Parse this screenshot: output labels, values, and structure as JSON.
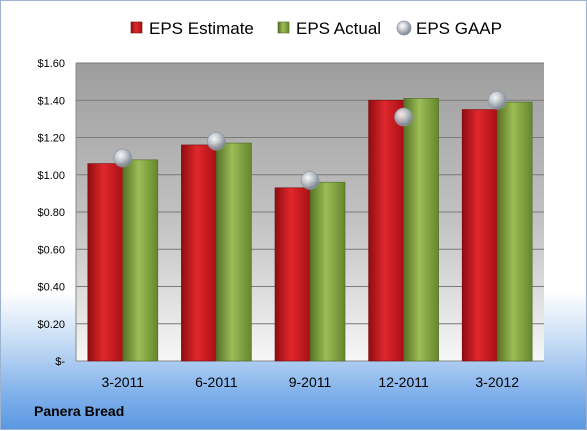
{
  "company": "Panera Bread",
  "chart_data": {
    "type": "bar",
    "categories": [
      "3-2011",
      "6-2011",
      "9-2011",
      "12-2011",
      "3-2012"
    ],
    "series": [
      {
        "name": "EPS Estimate",
        "kind": "bar",
        "color": "#c8141a",
        "values": [
          1.06,
          1.16,
          0.93,
          1.4,
          1.35
        ]
      },
      {
        "name": "EPS Actual",
        "kind": "bar",
        "color": "#7a9c3a",
        "values": [
          1.08,
          1.17,
          0.96,
          1.41,
          1.39
        ]
      },
      {
        "name": "EPS GAAP",
        "kind": "marker",
        "color": "#a9b3c2",
        "values": [
          1.09,
          1.18,
          0.97,
          1.31,
          1.4
        ]
      }
    ],
    "yticks": [
      "$-",
      "$0.20",
      "$0.40",
      "$0.60",
      "$0.80",
      "$1.00",
      "$1.20",
      "$1.40",
      "$1.60"
    ],
    "ylim": [
      0,
      1.6
    ],
    "grid": true,
    "legend_position": "top"
  }
}
